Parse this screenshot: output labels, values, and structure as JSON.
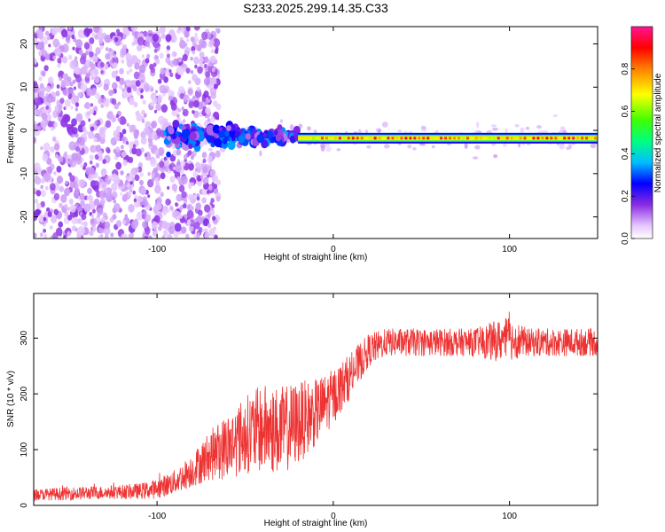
{
  "title": "S233.2025.299.14.35.C33",
  "chart_data": [
    {
      "type": "heatmap",
      "title": "S233.2025.299.14.35.C33",
      "xlabel": "Height of straight line (km)",
      "ylabel": "Frequency (Hz)",
      "xlim": [
        -170,
        150
      ],
      "ylim": [
        -25,
        24
      ],
      "xticks": [
        -100,
        0,
        100
      ],
      "yticks": [
        -20,
        -10,
        0,
        10,
        20
      ],
      "xtick_labels": [
        "-100",
        "0",
        "100"
      ],
      "ytick_labels": [
        "-20",
        "-10",
        "0",
        "10",
        "20"
      ],
      "signal_line": {
        "description": "narrow high-amplitude carrier line",
        "frequency_hz": -1.8,
        "x_start": -20,
        "x_end": 150,
        "peak_amplitude": 0.95
      },
      "noise_region": {
        "x_start": -170,
        "x_end": -75,
        "amplitude_range": [
          0.0,
          0.15
        ]
      },
      "transition_region": {
        "x_start": -95,
        "x_end": -20,
        "amplitude_range": [
          0.1,
          0.35
        ]
      },
      "colorbar": {
        "label": "Normalized spectral amplitude",
        "range": [
          0.0,
          1.0
        ],
        "ticks": [
          0.0,
          0.2,
          0.4,
          0.6,
          0.8
        ],
        "tick_labels": [
          "0.0",
          "0.2",
          "0.4",
          "0.6",
          "0.8"
        ],
        "colors": [
          "#ffffff",
          "#e6c8ff",
          "#8a2be2",
          "#0000ff",
          "#00ffff",
          "#00ff00",
          "#ffff00",
          "#ff8000",
          "#ff0000",
          "#ff1493"
        ]
      }
    },
    {
      "type": "line",
      "title": "",
      "xlabel": "Height of straight line (km)",
      "ylabel": "SNR (10 * v/v)",
      "xlim": [
        -170,
        150
      ],
      "ylim": [
        0,
        380
      ],
      "xticks": [
        -100,
        0,
        100
      ],
      "yticks": [
        0,
        100,
        200,
        300
      ],
      "xtick_labels": [
        "-100",
        "0",
        "100"
      ],
      "ytick_labels": [
        "0",
        "100",
        "200",
        "300"
      ],
      "color": "#ee3333",
      "series": [
        {
          "name": "SNR",
          "x": [
            -170,
            -150,
            -130,
            -110,
            -100,
            -90,
            -80,
            -70,
            -60,
            -50,
            -40,
            -30,
            -20,
            -10,
            0,
            10,
            20,
            30,
            40,
            50,
            60,
            70,
            80,
            90,
            100,
            110,
            120,
            130,
            140,
            150
          ],
          "y": [
            18,
            20,
            22,
            24,
            28,
            40,
            60,
            85,
            100,
            120,
            130,
            125,
            140,
            160,
            190,
            230,
            275,
            290,
            290,
            290,
            290,
            290,
            290,
            290,
            295,
            290,
            290,
            290,
            290,
            290
          ],
          "spread": [
            10,
            12,
            12,
            14,
            18,
            22,
            30,
            45,
            60,
            70,
            80,
            80,
            75,
            60,
            50,
            40,
            30,
            25,
            25,
            25,
            25,
            25,
            25,
            35,
            40,
            25,
            25,
            25,
            25,
            25
          ]
        }
      ]
    }
  ]
}
